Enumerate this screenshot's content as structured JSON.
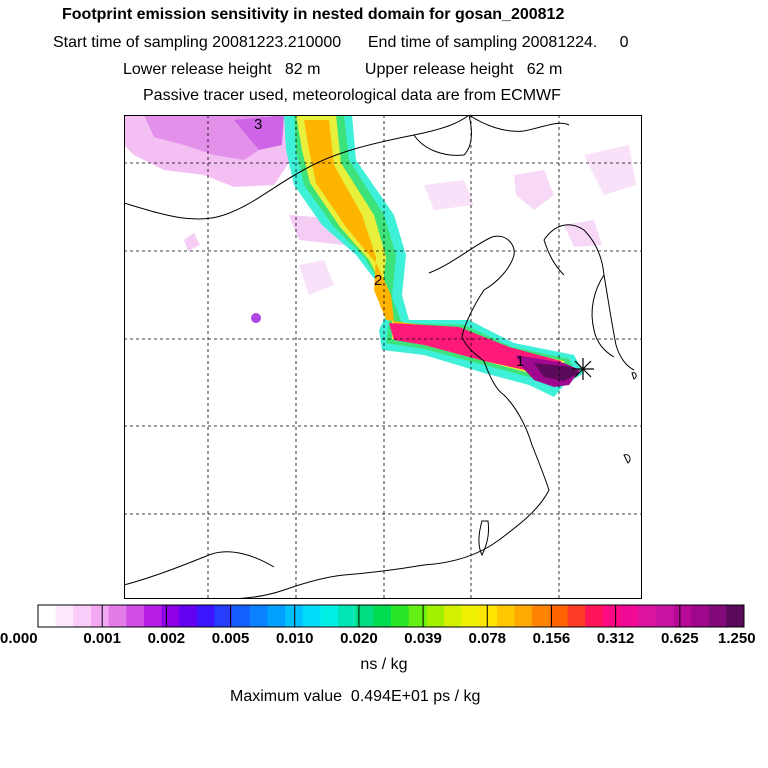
{
  "titles": {
    "main": "Footprint emission sensitivity in nested domain for gosan_200812",
    "sampling": "Start time of sampling 20081223.210000      End time of sampling 20081224.     0",
    "release": "Lower release height   82 m          Upper release height   62 m",
    "tracer": "Passive tracer used, meteorological data are from ECMWF"
  },
  "map": {
    "markers": [
      {
        "label": "1"
      },
      {
        "label": "2"
      },
      {
        "label": "3"
      }
    ],
    "site_marker": "star-icon"
  },
  "colorbar": {
    "tick_labels": [
      "0.000",
      "0.001",
      "0.002",
      "0.005",
      "0.010",
      "0.020",
      "0.039",
      "0.078",
      "0.156",
      "0.312",
      "0.625",
      "1.250"
    ],
    "unit": "ns / kg",
    "colors": [
      "#ffffff",
      "#fde8fd",
      "#f9ccf9",
      "#f2a8f2",
      "#e37ce8",
      "#d24ce6",
      "#b61ee6",
      "#8f00e6",
      "#6400f0",
      "#3c14ff",
      "#283cff",
      "#1460ff",
      "#0a82ff",
      "#00a0ff",
      "#00c0ff",
      "#00dcfa",
      "#00f0e6",
      "#00e6b4",
      "#00dc82",
      "#00dc50",
      "#2ae628",
      "#64f014",
      "#a0f000",
      "#d2f000",
      "#f0f000",
      "#ffe600",
      "#ffc800",
      "#ffaa00",
      "#ff8200",
      "#ff6400",
      "#ff3c28",
      "#ff145a",
      "#ff0a82",
      "#f00a96",
      "#dc14a0",
      "#c814a0",
      "#b40a96",
      "#a0088c",
      "#820a78",
      "#5a0a5a"
    ]
  },
  "max_value": "Maximum value  0.494E+01 ps / kg"
}
